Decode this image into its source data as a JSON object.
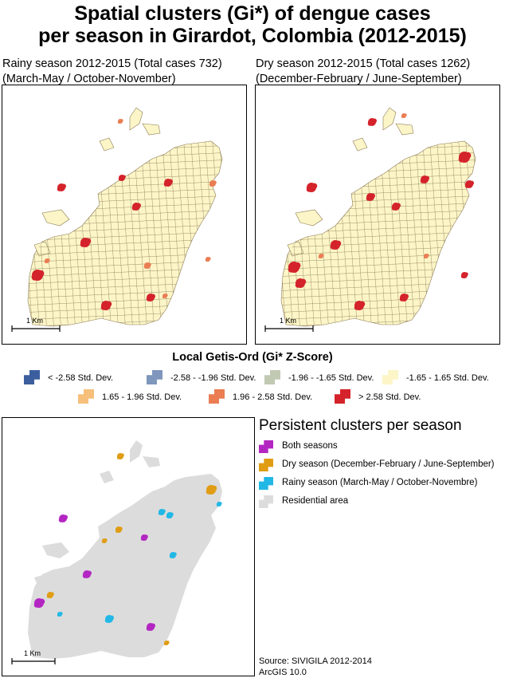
{
  "title_line1": "Spatial clusters (Gi*) of dengue cases",
  "title_line2": "per season in Girardot, Colombia (2012-2015)",
  "rainy_map": {
    "heading": "Rainy season 2012-2015 (Total cases 732)",
    "months": "(March-May / October-November)",
    "scale": "1 Km"
  },
  "dry_map": {
    "heading": "Dry season 2012-2015 (Total cases 1262)",
    "months": "(December-February / June-September)",
    "scale": "1 Km"
  },
  "gi_legend": {
    "title": "Local Getis-Ord (Gi* Z-Score)",
    "items": [
      {
        "label": "< -2.58 Std. Dev.",
        "color": "#3b5f9e"
      },
      {
        "label": "-2.58 - -1.96 Std. Dev.",
        "color": "#7f96bd"
      },
      {
        "label": "-1.96 - -1.65 Std. Dev.",
        "color": "#c2c9b3"
      },
      {
        "label": "-1.65 - 1.65 Std. Dev.",
        "color": "#fcf5c7"
      },
      {
        "label": "1.65 - 1.96 Std. Dev.",
        "color": "#f6c07b"
      },
      {
        "label": "1.96 - 2.58 Std. Dev.",
        "color": "#ea7d52"
      },
      {
        "label": "> 2.58 Std. Dev.",
        "color": "#d4232a"
      }
    ]
  },
  "persistent": {
    "title": "Persistent clusters per season",
    "items": [
      {
        "label": "Both seasons",
        "color": "#b326c2"
      },
      {
        "label": "Dry season (December-February / June-September)",
        "color": "#e09d14"
      },
      {
        "label": "Rainy season (March-May / October-Novembre)",
        "color": "#22b8e6"
      },
      {
        "label": "Residential area",
        "color": "#dcdcdc"
      }
    ],
    "scale": "1 Km"
  },
  "source": {
    "line1": "Source: SIVIGILA 2012-2014",
    "line2": "ArcGIS 10.0"
  }
}
